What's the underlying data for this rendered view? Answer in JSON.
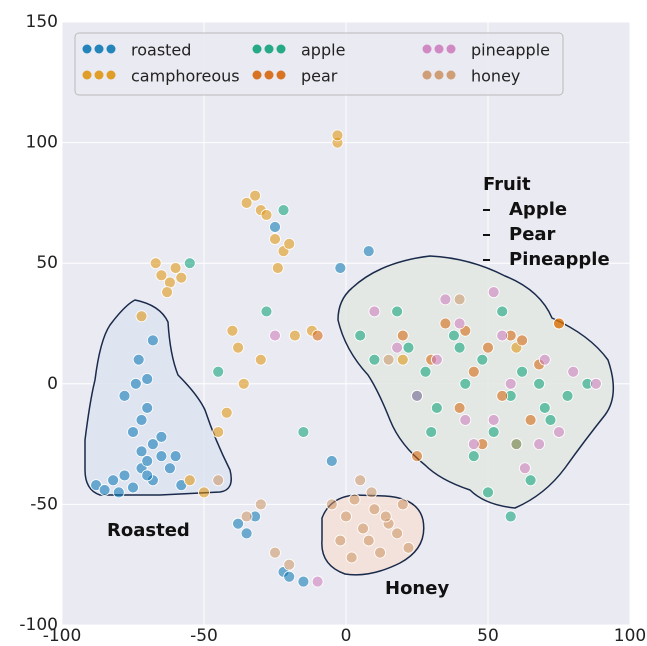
{
  "chart_data": {
    "type": "scatter",
    "xlim": [
      -100,
      100
    ],
    "ylim": [
      -100,
      150
    ],
    "xticks": [
      -100,
      -50,
      0,
      50,
      100
    ],
    "yticks": [
      -100,
      -50,
      0,
      50,
      100,
      150
    ],
    "grid": true,
    "legend": "upper left",
    "annotations": {
      "roasted": "Roasted",
      "honey": "Honey",
      "fruit_title": "Fruit",
      "fruit_items": [
        "Apple",
        "Pear",
        "Pineapple"
      ]
    },
    "series": [
      {
        "name": "roasted",
        "color": "#0173b2",
        "x": [
          -88,
          -85,
          -82,
          -80,
          -78,
          -75,
          -72,
          -70,
          -68,
          -65,
          -62,
          -60,
          -58,
          -75,
          -72,
          -70,
          -68,
          -78,
          -74,
          -70,
          -73,
          -68,
          -65,
          -72,
          -70,
          -38,
          -35,
          -32,
          -22,
          -15,
          -5,
          -2,
          8,
          -25,
          -20
        ],
        "values": [
          -42,
          -44,
          -40,
          -45,
          -38,
          -43,
          -35,
          -32,
          -40,
          -30,
          -35,
          -30,
          -42,
          -20,
          -15,
          -10,
          -25,
          -5,
          0,
          2,
          10,
          18,
          -22,
          -28,
          -38,
          -58,
          -62,
          -55,
          -78,
          -82,
          -32,
          48,
          55,
          65,
          -80
        ]
      },
      {
        "name": "camphoreous",
        "color": "#de8f05",
        "x": [
          -65,
          -62,
          -60,
          -58,
          -63,
          -67,
          -72,
          -35,
          -32,
          -30,
          -28,
          -25,
          -22,
          -20,
          -24,
          -40,
          -38,
          -36,
          -45,
          -42,
          -30,
          -18,
          -12,
          -3,
          -3,
          -55,
          -50,
          60,
          75,
          20
        ],
        "values": [
          45,
          42,
          48,
          44,
          38,
          50,
          28,
          75,
          78,
          72,
          70,
          60,
          55,
          58,
          48,
          22,
          15,
          0,
          -20,
          -12,
          10,
          20,
          22,
          100,
          103,
          -40,
          -45,
          15,
          25,
          10
        ]
      },
      {
        "name": "apple",
        "color": "#029e73",
        "x": [
          5,
          10,
          18,
          22,
          28,
          32,
          38,
          42,
          48,
          52,
          58,
          62,
          68,
          72,
          78,
          85,
          45,
          55,
          65,
          30,
          25,
          40,
          60,
          70,
          -55,
          -28,
          -22,
          -45,
          -15,
          50,
          58
        ],
        "values": [
          20,
          10,
          30,
          15,
          5,
          -10,
          20,
          0,
          10,
          -20,
          -5,
          5,
          0,
          -15,
          -5,
          0,
          -30,
          30,
          -40,
          -20,
          -5,
          15,
          -25,
          -10,
          50,
          30,
          72,
          5,
          -20,
          -45,
          -55
        ]
      },
      {
        "name": "pear",
        "color": "#d55e00",
        "x": [
          20,
          30,
          35,
          42,
          45,
          50,
          55,
          62,
          68,
          75,
          40,
          48,
          58,
          -10,
          25,
          65
        ],
        "values": [
          20,
          10,
          25,
          22,
          5,
          15,
          -5,
          18,
          8,
          25,
          -10,
          -25,
          20,
          20,
          -30,
          -15
        ]
      },
      {
        "name": "pineapple",
        "color": "#cc78bc",
        "x": [
          10,
          18,
          25,
          32,
          40,
          45,
          52,
          58,
          63,
          70,
          75,
          80,
          88,
          35,
          42,
          55,
          68,
          52,
          -25,
          -10
        ],
        "values": [
          30,
          15,
          -5,
          10,
          25,
          -25,
          -15,
          0,
          -35,
          10,
          -20,
          5,
          0,
          35,
          -15,
          20,
          -25,
          38,
          20,
          -82
        ]
      },
      {
        "name": "honey",
        "color": "#ca9161",
        "x": [
          -5,
          0,
          3,
          6,
          8,
          10,
          12,
          15,
          18,
          20,
          22,
          2,
          5,
          9,
          14,
          -2,
          -30,
          -25,
          -20,
          -45,
          15,
          40,
          60,
          -35
        ],
        "values": [
          -50,
          -55,
          -48,
          -60,
          -65,
          -52,
          -70,
          -58,
          -62,
          -50,
          -68,
          -72,
          -40,
          -45,
          -55,
          -65,
          -50,
          -70,
          -75,
          -40,
          10,
          35,
          -25,
          -55
        ]
      }
    ]
  }
}
